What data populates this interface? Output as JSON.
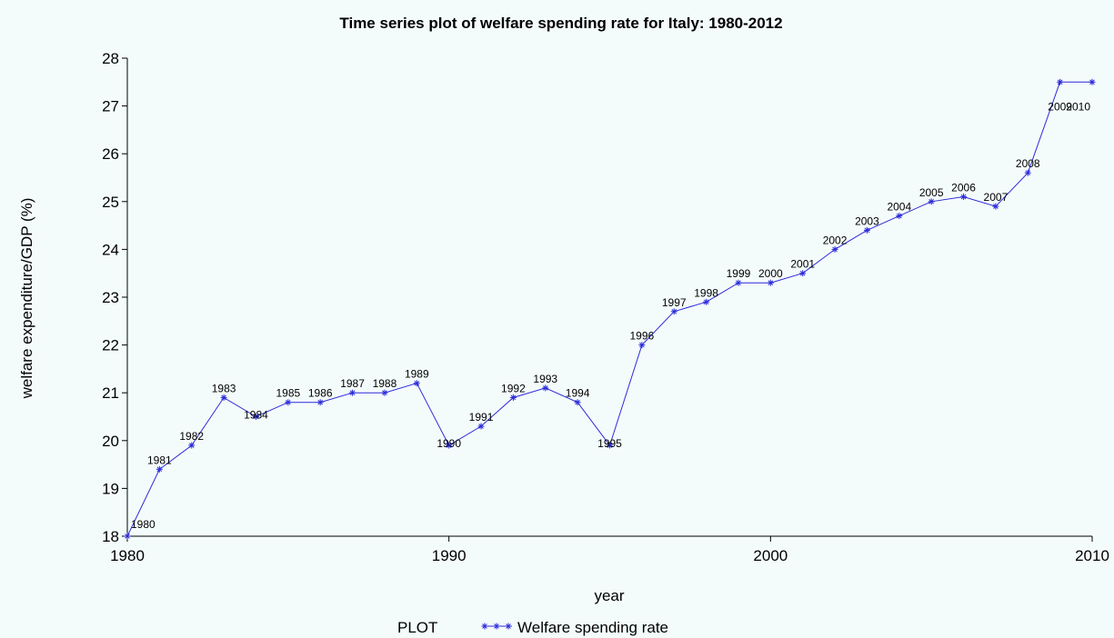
{
  "chart_data": {
    "type": "line",
    "title": "Time series plot of welfare spending rate  for Italy: 1980-2012",
    "xlabel": "year",
    "ylabel": "welfare expenditure/GDP (%)",
    "xlim": [
      1980,
      2010
    ],
    "ylim": [
      18,
      28
    ],
    "x_ticks": [
      1980,
      1990,
      2000,
      2010
    ],
    "y_ticks": [
      18,
      19,
      20,
      21,
      22,
      23,
      24,
      25,
      26,
      27,
      28
    ],
    "grid": false,
    "legend": {
      "title": "PLOT",
      "placement": "bottom-center"
    },
    "series": [
      {
        "name": "Welfare spending rate",
        "color": "#2b2bd9",
        "marker": "asterisk",
        "x": [
          1980,
          1981,
          1982,
          1983,
          1984,
          1985,
          1986,
          1987,
          1988,
          1989,
          1990,
          1991,
          1992,
          1993,
          1994,
          1995,
          1996,
          1997,
          1998,
          1999,
          2000,
          2001,
          2002,
          2003,
          2004,
          2005,
          2006,
          2007,
          2008,
          2009,
          2010
        ],
        "values": [
          18.0,
          19.4,
          19.9,
          20.9,
          20.5,
          20.8,
          20.8,
          21.0,
          21.0,
          21.2,
          19.9,
          20.3,
          20.9,
          21.1,
          20.8,
          19.9,
          22.0,
          22.7,
          22.9,
          23.3,
          23.3,
          23.5,
          24.0,
          24.4,
          24.7,
          25.0,
          25.1,
          24.9,
          25.6,
          27.5,
          27.5
        ],
        "point_labels": [
          "1980",
          "1981",
          "1982",
          "1983",
          "1984",
          "1985",
          "1986",
          "1987",
          "1988",
          "1989",
          "1990",
          "1991",
          "1992",
          "1993",
          "1994",
          "1995",
          "1996",
          "1997",
          "1998",
          "1999",
          "2000",
          "2001",
          "2002",
          "2003",
          "2004",
          "2005",
          "2006",
          "2007",
          "2008",
          "2009",
          "2010"
        ]
      }
    ]
  }
}
